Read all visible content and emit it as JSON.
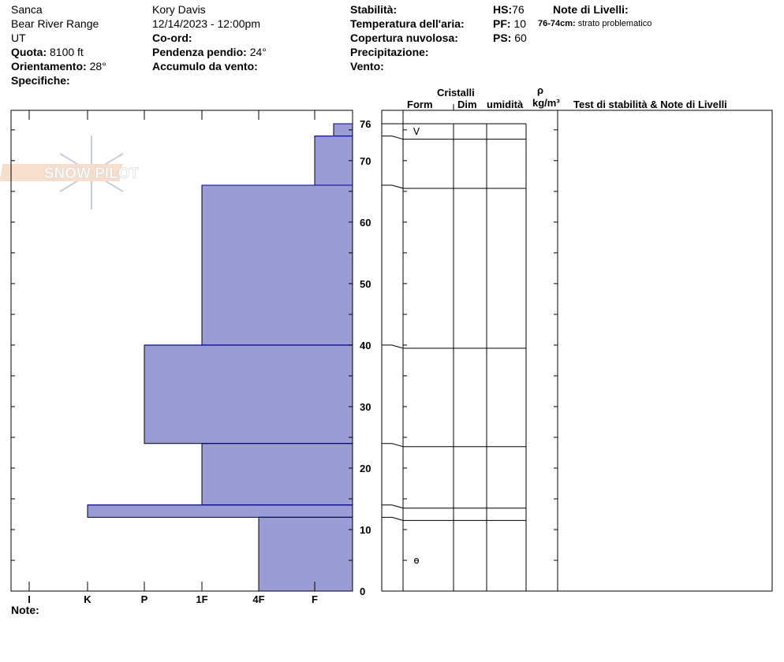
{
  "header": {
    "location": "Sanca",
    "range": "Bear River Range",
    "state": "UT",
    "elevation_label": "Quota:",
    "elevation": "8100 ft",
    "aspect_label": "Orientamento:",
    "aspect": "28°",
    "specifics_label": "Specifiche:",
    "observer": "Kory Davis",
    "datetime": "12/14/2023 - 12:00pm",
    "coord_label": "Co-ord:",
    "slope_label": "Pendenza pendio:",
    "slope": "24°",
    "wind_loading_label": "Accumulo da vento:",
    "stability_label": "Stabilità:",
    "air_temp_label": "Temperatura dell'aria:",
    "cloud_label": "Copertura nuvolosa:",
    "precip_label": "Precipitazione:",
    "wind_label": "Vento:",
    "hs_label": "HS:",
    "hs": "76",
    "pf_label": "PF:",
    "pf": "10",
    "ps_label": "PS:",
    "ps": "60",
    "layer_notes_label": "Note di Livelli:",
    "layer_note_range": "76-74cm:",
    "layer_note_text": "strato problematico"
  },
  "grid_headers": {
    "crystals": "Cristalli",
    "form": "Form",
    "size": "Dim",
    "moisture": "umidità",
    "rho": "ρ",
    "density_unit": "kg/m³",
    "tests": "Test di stabilità & Note di Livelli"
  },
  "notes_label": "Note:",
  "logo_text": "SNOW PILOT",
  "colors": {
    "layer_fill": "#9b9bd6",
    "layer_edge": "#0000c0"
  },
  "chart_data": {
    "type": "bar",
    "title": "",
    "ylabel": "",
    "xlabel": "",
    "ylim": [
      0,
      76
    ],
    "y_ticks": [
      "0",
      "10",
      "20",
      "30",
      "40",
      "50",
      "60",
      "70",
      "76"
    ],
    "x_ticks": [
      "I",
      "K",
      "P",
      "1F",
      "4F",
      "F"
    ],
    "layers": [
      {
        "top": 76,
        "bottom": 74,
        "hardness": "F-",
        "form": "V"
      },
      {
        "top": 74,
        "bottom": 66,
        "hardness": "F",
        "form": ""
      },
      {
        "top": 66,
        "bottom": 40,
        "hardness": "1F",
        "form": ""
      },
      {
        "top": 40,
        "bottom": 24,
        "hardness": "P",
        "form": ""
      },
      {
        "top": 24,
        "bottom": 14,
        "hardness": "1F",
        "form": ""
      },
      {
        "top": 14,
        "bottom": 12,
        "hardness": "K",
        "form": ""
      },
      {
        "top": 12,
        "bottom": 0,
        "hardness": "4F",
        "form": "ө"
      }
    ]
  }
}
